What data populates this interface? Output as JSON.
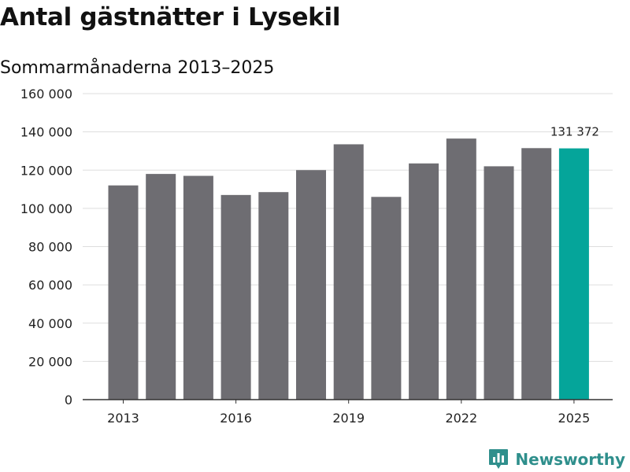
{
  "chart_data": {
    "type": "bar",
    "title": "Antal gästnätter i Lysekil",
    "subtitle": "Sommarmånaderna 2013–2025",
    "categories": [
      "2013",
      "2014",
      "2015",
      "2016",
      "2017",
      "2018",
      "2019",
      "2020",
      "2021",
      "2022",
      "2023",
      "2024",
      "2025"
    ],
    "x_tick_labels": [
      "2013",
      "2016",
      "2019",
      "2022",
      "2025"
    ],
    "values": [
      112000,
      118000,
      117000,
      107000,
      108500,
      120000,
      133500,
      106000,
      123500,
      136500,
      122000,
      131500,
      131372
    ],
    "highlight": {
      "category": "2025",
      "label": "131 372"
    },
    "y_ticks": [
      0,
      20000,
      40000,
      60000,
      80000,
      100000,
      120000,
      140000,
      160000
    ],
    "y_tick_labels": [
      "0",
      "20 000",
      "40 000",
      "60 000",
      "80 000",
      "100 000",
      "120 000",
      "140 000",
      "160 000"
    ],
    "ylim": [
      0,
      160000
    ],
    "xlabel": "",
    "ylabel": "",
    "grid": true,
    "colors": {
      "bar": "#6e6d72",
      "highlight": "#05a59a",
      "grid": "#dddddd",
      "axis": "#333333"
    }
  },
  "brand": {
    "name": "Newsworthy",
    "icon": "bar-chart-bubble-icon",
    "color": "#2f8f8c"
  }
}
